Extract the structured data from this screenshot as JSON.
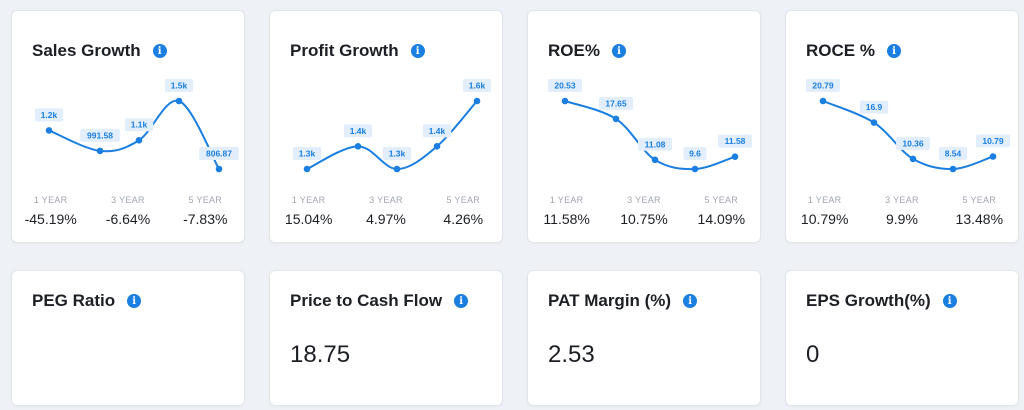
{
  "colors": {
    "accent": "#1a7fe0",
    "line": "#1a7fe0",
    "label_bg": "#e3eefc"
  },
  "cards": [
    {
      "title": "Sales Growth",
      "info_icon": "info-icon",
      "points": [
        {
          "label": "1.2k",
          "v": 1.2
        },
        {
          "label": "991.58",
          "v": 0.99158
        },
        {
          "label": "1.1k",
          "v": 1.1
        },
        {
          "label": "1.5k",
          "v": 1.5
        },
        {
          "label": "806.87",
          "v": 0.80687
        }
      ],
      "periods": [
        "1 YEAR",
        "3 YEAR",
        "5 YEAR"
      ],
      "values": [
        "-45.19%",
        "-6.64%",
        "-7.83%"
      ]
    },
    {
      "title": "Profit Growth",
      "info_icon": "info-icon",
      "points": [
        {
          "label": "1.3k",
          "v": 1.3
        },
        {
          "label": "1.4k",
          "v": 1.4
        },
        {
          "label": "1.3k",
          "v": 1.3
        },
        {
          "label": "1.4k",
          "v": 1.4
        },
        {
          "label": "1.6k",
          "v": 1.6
        }
      ],
      "periods": [
        "1 YEAR",
        "3 YEAR",
        "5 YEAR"
      ],
      "values": [
        "15.04%",
        "4.97%",
        "4.26%"
      ]
    },
    {
      "title": "ROE%",
      "info_icon": "info-icon",
      "points": [
        {
          "label": "20.53",
          "v": 20.53
        },
        {
          "label": "17.65",
          "v": 17.65
        },
        {
          "label": "11.08",
          "v": 11.08
        },
        {
          "label": "9.6",
          "v": 9.6
        },
        {
          "label": "11.58",
          "v": 11.58
        }
      ],
      "periods": [
        "1 YEAR",
        "3 YEAR",
        "5 YEAR"
      ],
      "values": [
        "11.58%",
        "10.75%",
        "14.09%"
      ]
    },
    {
      "title": "ROCE %",
      "info_icon": "info-icon",
      "points": [
        {
          "label": "20.79",
          "v": 20.79
        },
        {
          "label": "16.9",
          "v": 16.9
        },
        {
          "label": "10.36",
          "v": 10.36
        },
        {
          "label": "8.54",
          "v": 8.54
        },
        {
          "label": "10.79",
          "v": 10.79
        }
      ],
      "periods": [
        "1 YEAR",
        "3 YEAR",
        "5 YEAR"
      ],
      "values": [
        "10.79%",
        "9.9%",
        "13.48%"
      ]
    }
  ],
  "metrics": [
    {
      "title": "PEG Ratio",
      "value": ""
    },
    {
      "title": "Price to Cash Flow",
      "value": "18.75"
    },
    {
      "title": "PAT Margin (%)",
      "value": "2.53"
    },
    {
      "title": "EPS Growth(%)",
      "value": "0"
    }
  ]
}
